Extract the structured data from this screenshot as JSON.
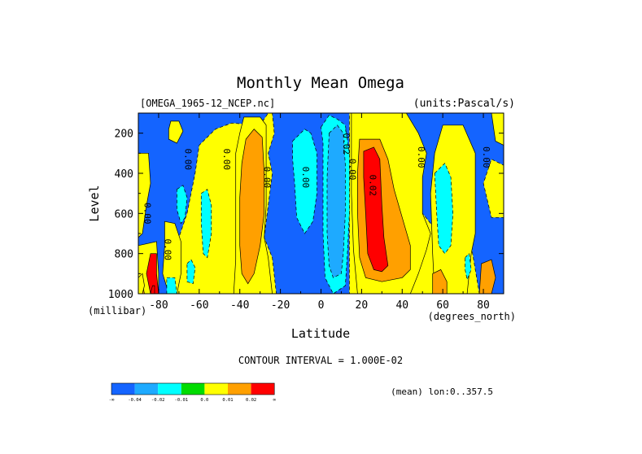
{
  "chart_data": {
    "type": "heatmap",
    "title": "Monthly Mean Omega",
    "dataset_label": "[OMEGA_1965-12_NCEP.nc]",
    "units_label": "(units:Pascal/s)",
    "xlabel": "Latitude",
    "x_unit": "(degrees_north)",
    "ylabel": "Level",
    "y_unit": "(millibar)",
    "xlim": [
      -90,
      90
    ],
    "ylim": [
      1000,
      100
    ],
    "x_ticks": [
      -80,
      -60,
      -40,
      -20,
      0,
      20,
      40,
      60,
      80
    ],
    "x_tick_labels": [
      "-80",
      "-60",
      "-40",
      "-20",
      "0",
      "20",
      "40",
      "60",
      "80"
    ],
    "y_ticks": [
      200,
      400,
      600,
      800,
      1000
    ],
    "y_tick_labels": [
      "200",
      "400",
      "600",
      "800",
      "1000"
    ],
    "contour_interval_label": "CONTOUR INTERVAL = 1.000E-02",
    "subset_label": "(mean) lon:0..357.5",
    "legend": {
      "placement": "bottom-left",
      "colors": [
        "#1464ff",
        "#1eaaff",
        "#00ffff",
        "#00dc00",
        "#ffff00",
        "#ffa000",
        "#ff0000"
      ],
      "labels": [
        "-∞",
        "-0.04",
        "-0.02",
        "-0.01",
        "0.0",
        "0.01",
        "0.02",
        "∞"
      ]
    },
    "contour_labels": [
      {
        "text": "0.00",
        "lat": -87,
        "level": 600
      },
      {
        "text": "0.00",
        "lat": -77,
        "level": 780
      },
      {
        "text": "0.00",
        "lat": -67,
        "level": 330
      },
      {
        "text": "0.00",
        "lat": -48,
        "level": 330
      },
      {
        "text": "0.00",
        "lat": -28,
        "level": 420
      },
      {
        "text": "0.00",
        "lat": -9,
        "level": 420
      },
      {
        "text": "0.00",
        "lat": 14,
        "level": 380
      },
      {
        "text": "-0.02",
        "lat": 11,
        "level": 240
      },
      {
        "text": "0.02",
        "lat": 24,
        "level": 460
      },
      {
        "text": "0.00",
        "lat": 48,
        "level": 320
      },
      {
        "text": "0.00",
        "lat": 80,
        "level": 320
      }
    ],
    "regions": [
      {
        "level": 0.0,
        "poly": [
          [
            -90,
            100
          ],
          [
            90,
            100
          ],
          [
            90,
            1000
          ],
          [
            -90,
            1000
          ]
        ]
      },
      {
        "level": -1,
        "poly": [
          [
            -90,
            100
          ],
          [
            -26,
            100
          ],
          [
            -30,
            160
          ],
          [
            -44,
            150
          ],
          [
            -52,
            180
          ],
          [
            -60,
            260
          ],
          [
            -62,
            400
          ],
          [
            -66,
            600
          ],
          [
            -70,
            720
          ],
          [
            -74,
            820
          ],
          [
            -73,
            1000
          ],
          [
            -90,
            1000
          ]
        ]
      },
      {
        "level": -1,
        "poly": [
          [
            -24,
            100
          ],
          [
            14,
            100
          ],
          [
            14,
            1000
          ],
          [
            -22,
            1000
          ],
          [
            -24,
            820
          ],
          [
            -28,
            720
          ],
          [
            -26,
            560
          ],
          [
            -24,
            400
          ],
          [
            -26,
            300
          ],
          [
            -23,
            200
          ]
        ]
      },
      {
        "level": -1,
        "poly": [
          [
            42,
            100
          ],
          [
            90,
            100
          ],
          [
            90,
            360
          ],
          [
            84,
            330
          ],
          [
            80,
            450
          ],
          [
            84,
            620
          ],
          [
            90,
            620
          ],
          [
            90,
            1000
          ],
          [
            78,
            1000
          ],
          [
            74,
            760
          ],
          [
            58,
            700
          ],
          [
            50,
            600
          ],
          [
            48,
            420
          ],
          [
            52,
            300
          ],
          [
            46,
            200
          ]
        ]
      },
      {
        "level": 0.0,
        "poly": [
          [
            -74,
            140
          ],
          [
            -70,
            140
          ],
          [
            -68,
            190
          ],
          [
            -71,
            250
          ],
          [
            -75,
            230
          ],
          [
            -75,
            180
          ]
        ]
      },
      {
        "level": 0.0,
        "poly": [
          [
            -77,
            640
          ],
          [
            -72,
            650
          ],
          [
            -69,
            740
          ],
          [
            -69,
            900
          ],
          [
            -71,
            1000
          ],
          [
            -75,
            1000
          ],
          [
            -78,
            900
          ],
          [
            -77,
            760
          ]
        ]
      },
      {
        "level": 0.0,
        "poly": [
          [
            -90,
            300
          ],
          [
            -85,
            300
          ],
          [
            -84,
            450
          ],
          [
            -86,
            560
          ],
          [
            -88,
            700
          ],
          [
            -90,
            720
          ]
        ]
      },
      {
        "level": 0.0,
        "poly": [
          [
            -90,
            760
          ],
          [
            -81,
            740
          ],
          [
            -80,
            900
          ],
          [
            -80,
            1000
          ],
          [
            -90,
            1000
          ]
        ]
      },
      {
        "level": 0.0,
        "poly": [
          [
            -38,
            120
          ],
          [
            -30,
            120
          ],
          [
            -27,
            160
          ],
          [
            -27,
            320
          ],
          [
            -27,
            560
          ],
          [
            -28,
            720
          ],
          [
            -26,
            820
          ],
          [
            -24,
            1000
          ],
          [
            -43,
            1000
          ],
          [
            -42,
            830
          ],
          [
            -42,
            500
          ],
          [
            -42,
            300
          ],
          [
            -40,
            200
          ]
        ]
      },
      {
        "level": 0.0,
        "poly": [
          [
            60,
            160
          ],
          [
            70,
            160
          ],
          [
            76,
            300
          ],
          [
            76,
            700
          ],
          [
            74,
            800
          ],
          [
            72,
            1000
          ],
          [
            56,
            1000
          ],
          [
            55,
            800
          ],
          [
            54,
            500
          ],
          [
            56,
            300
          ]
        ]
      },
      {
        "level": 0.0,
        "poly": [
          [
            84,
            100
          ],
          [
            90,
            100
          ],
          [
            90,
            260
          ],
          [
            86,
            240
          ]
        ]
      },
      {
        "level": 0.0,
        "poly": [
          [
            15,
            100
          ],
          [
            42,
            100
          ],
          [
            48,
            200
          ],
          [
            52,
            300
          ],
          [
            50,
            420
          ],
          [
            50,
            600
          ],
          [
            54,
            700
          ],
          [
            52,
            780
          ],
          [
            48,
            900
          ],
          [
            44,
            1000
          ],
          [
            18,
            1000
          ],
          [
            16,
            780
          ],
          [
            15,
            500
          ]
        ]
      },
      {
        "level": 0.01,
        "poly": [
          [
            -37,
            230
          ],
          [
            -33,
            180
          ],
          [
            -29,
            220
          ],
          [
            -28,
            400
          ],
          [
            -28,
            600
          ],
          [
            -30,
            760
          ],
          [
            -33,
            900
          ],
          [
            -36,
            950
          ],
          [
            -39,
            900
          ],
          [
            -40,
            760
          ],
          [
            -40,
            520
          ],
          [
            -39,
            350
          ]
        ]
      },
      {
        "level": 0.01,
        "poly": [
          [
            19,
            230
          ],
          [
            29,
            230
          ],
          [
            33,
            330
          ],
          [
            36,
            480
          ],
          [
            40,
            620
          ],
          [
            44,
            760
          ],
          [
            44,
            880
          ],
          [
            40,
            920
          ],
          [
            30,
            940
          ],
          [
            22,
            920
          ],
          [
            19,
            820
          ],
          [
            18,
            600
          ],
          [
            18,
            400
          ]
        ]
      },
      {
        "level": 0.01,
        "poly": [
          [
            55,
            900
          ],
          [
            59,
            880
          ],
          [
            62,
            940
          ],
          [
            62,
            1000
          ],
          [
            55,
            1000
          ]
        ]
      },
      {
        "level": 0.01,
        "poly": [
          [
            79,
            850
          ],
          [
            84,
            830
          ],
          [
            86,
            920
          ],
          [
            84,
            1000
          ],
          [
            78,
            1000
          ]
        ]
      },
      {
        "level": 0.01,
        "poly": [
          [
            -90,
            960
          ],
          [
            -88,
            950
          ],
          [
            -87,
            1000
          ],
          [
            -90,
            1000
          ]
        ]
      },
      {
        "level": 0.02,
        "poly": [
          [
            21,
            290
          ],
          [
            26,
            270
          ],
          [
            29,
            330
          ],
          [
            30,
            560
          ],
          [
            31,
            720
          ],
          [
            33,
            860
          ],
          [
            30,
            890
          ],
          [
            26,
            880
          ],
          [
            23,
            800
          ],
          [
            22,
            600
          ],
          [
            21,
            420
          ]
        ]
      },
      {
        "level": 0.02,
        "poly": [
          [
            -86,
            900
          ],
          [
            -84,
            800
          ],
          [
            -81,
            800
          ],
          [
            -81,
            900
          ],
          [
            -80,
            1000
          ],
          [
            -84,
            1000
          ]
        ]
      },
      {
        "level": 0.02,
        "poly": [
          [
            -84,
            1000
          ],
          [
            -83,
            960
          ],
          [
            -82,
            960
          ],
          [
            -82,
            1000
          ]
        ]
      },
      {
        "level": -0.01,
        "poly": [
          [
            -71,
            480
          ],
          [
            -68,
            460
          ],
          [
            -66,
            520
          ],
          [
            -67,
            620
          ],
          [
            -69,
            650
          ],
          [
            -71,
            580
          ]
        ]
      },
      {
        "level": -0.01,
        "poly": [
          [
            -66,
            850
          ],
          [
            -64,
            830
          ],
          [
            -62,
            870
          ],
          [
            -63,
            950
          ],
          [
            -66,
            940
          ]
        ]
      },
      {
        "level": -0.01,
        "poly": [
          [
            -59,
            500
          ],
          [
            -56,
            480
          ],
          [
            -54,
            560
          ],
          [
            -54,
            700
          ],
          [
            -56,
            820
          ],
          [
            -58,
            800
          ],
          [
            -59,
            650
          ]
        ]
      },
      {
        "level": -0.01,
        "poly": [
          [
            -14,
            240
          ],
          [
            -8,
            180
          ],
          [
            -5,
            200
          ],
          [
            -2,
            300
          ],
          [
            -2,
            500
          ],
          [
            -4,
            640
          ],
          [
            -8,
            700
          ],
          [
            -12,
            620
          ],
          [
            -13,
            450
          ],
          [
            -14,
            330
          ]
        ]
      },
      {
        "level": -0.01,
        "poly": [
          [
            0,
            170
          ],
          [
            4,
            110
          ],
          [
            8,
            130
          ],
          [
            12,
            160
          ],
          [
            14,
            300
          ],
          [
            14,
            600
          ],
          [
            13,
            800
          ],
          [
            12,
            960
          ],
          [
            6,
            1000
          ],
          [
            2,
            920
          ],
          [
            1,
            700
          ],
          [
            1,
            400
          ],
          [
            1,
            250
          ]
        ]
      },
      {
        "level": -0.01,
        "poly": [
          [
            56,
            400
          ],
          [
            61,
            350
          ],
          [
            64,
            420
          ],
          [
            65,
            600
          ],
          [
            64,
            760
          ],
          [
            61,
            800
          ],
          [
            58,
            760
          ],
          [
            57,
            600
          ]
        ]
      },
      {
        "level": -0.01,
        "poly": [
          [
            71,
            820
          ],
          [
            73,
            800
          ],
          [
            74,
            880
          ],
          [
            72,
            930
          ],
          [
            71,
            880
          ]
        ]
      },
      {
        "level": -0.01,
        "poly": [
          [
            -76,
            920
          ],
          [
            -72,
            920
          ],
          [
            -71,
            1000
          ],
          [
            -76,
            1000
          ]
        ]
      },
      {
        "level": -0.02,
        "poly": [
          [
            4,
            200
          ],
          [
            8,
            160
          ],
          [
            11,
            200
          ],
          [
            12,
            360
          ],
          [
            12,
            600
          ],
          [
            11,
            800
          ],
          [
            10,
            900
          ],
          [
            6,
            920
          ],
          [
            4,
            860
          ],
          [
            3,
            700
          ],
          [
            3,
            420
          ]
        ]
      },
      {
        "level": 0.0,
        "poly": [
          [
            -90,
            920
          ],
          [
            -88,
            900
          ],
          [
            -87,
            960
          ],
          [
            -88,
            1000
          ],
          [
            -90,
            1000
          ]
        ]
      }
    ]
  }
}
